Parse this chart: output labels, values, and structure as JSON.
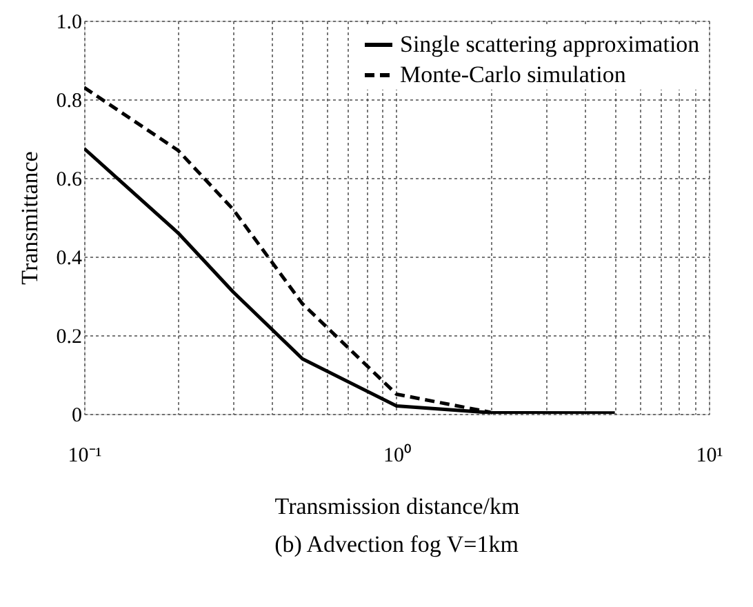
{
  "chart_data": {
    "type": "line",
    "xlabel": "Transmission distance/km",
    "ylabel": "Transmittance",
    "annotations": [
      "(b) Advection fog V=1km"
    ],
    "xlim": [
      0.1,
      10
    ],
    "ylim": [
      0,
      1.0
    ],
    "log": "x",
    "grid": true,
    "legend": "top right",
    "xticks": [
      {
        "value": 0.1,
        "label": "10⁻¹"
      },
      {
        "value": 0.2,
        "label": null
      },
      {
        "value": 0.3,
        "label": null
      },
      {
        "value": 0.4,
        "label": null
      },
      {
        "value": 0.5,
        "label": null
      },
      {
        "value": 0.6,
        "label": null
      },
      {
        "value": 0.7,
        "label": null
      },
      {
        "value": 0.8,
        "label": null
      },
      {
        "value": 0.9,
        "label": null
      },
      {
        "value": 1,
        "label": "10⁰"
      },
      {
        "value": 2,
        "label": null
      },
      {
        "value": 3,
        "label": null
      },
      {
        "value": 4,
        "label": null
      },
      {
        "value": 5,
        "label": null
      },
      {
        "value": 6,
        "label": null
      },
      {
        "value": 7,
        "label": null
      },
      {
        "value": 8,
        "label": null
      },
      {
        "value": 9,
        "label": null
      },
      {
        "value": 10,
        "label": "10¹"
      }
    ],
    "yticks": [
      0,
      0.2,
      0.4,
      0.6,
      0.8,
      {
        "value": 1.0,
        "label": "1.0"
      }
    ],
    "series": [
      {
        "name": "Single scattering approximation",
        "color": "#000000",
        "line_style": "solid",
        "x": [
          0.1,
          0.2,
          0.3,
          0.5,
          1,
          2,
          5
        ],
        "values": [
          0.675,
          0.46,
          0.31,
          0.14,
          0.02,
          0.003,
          0.002
        ]
      },
      {
        "name": "Monte-Carlo simulation",
        "color": "#000000",
        "line_style": "dashed",
        "x": [
          0.1,
          0.2,
          0.3,
          0.5,
          1,
          2
        ],
        "values": [
          0.83,
          0.67,
          0.52,
          0.28,
          0.05,
          0.004
        ]
      }
    ]
  }
}
